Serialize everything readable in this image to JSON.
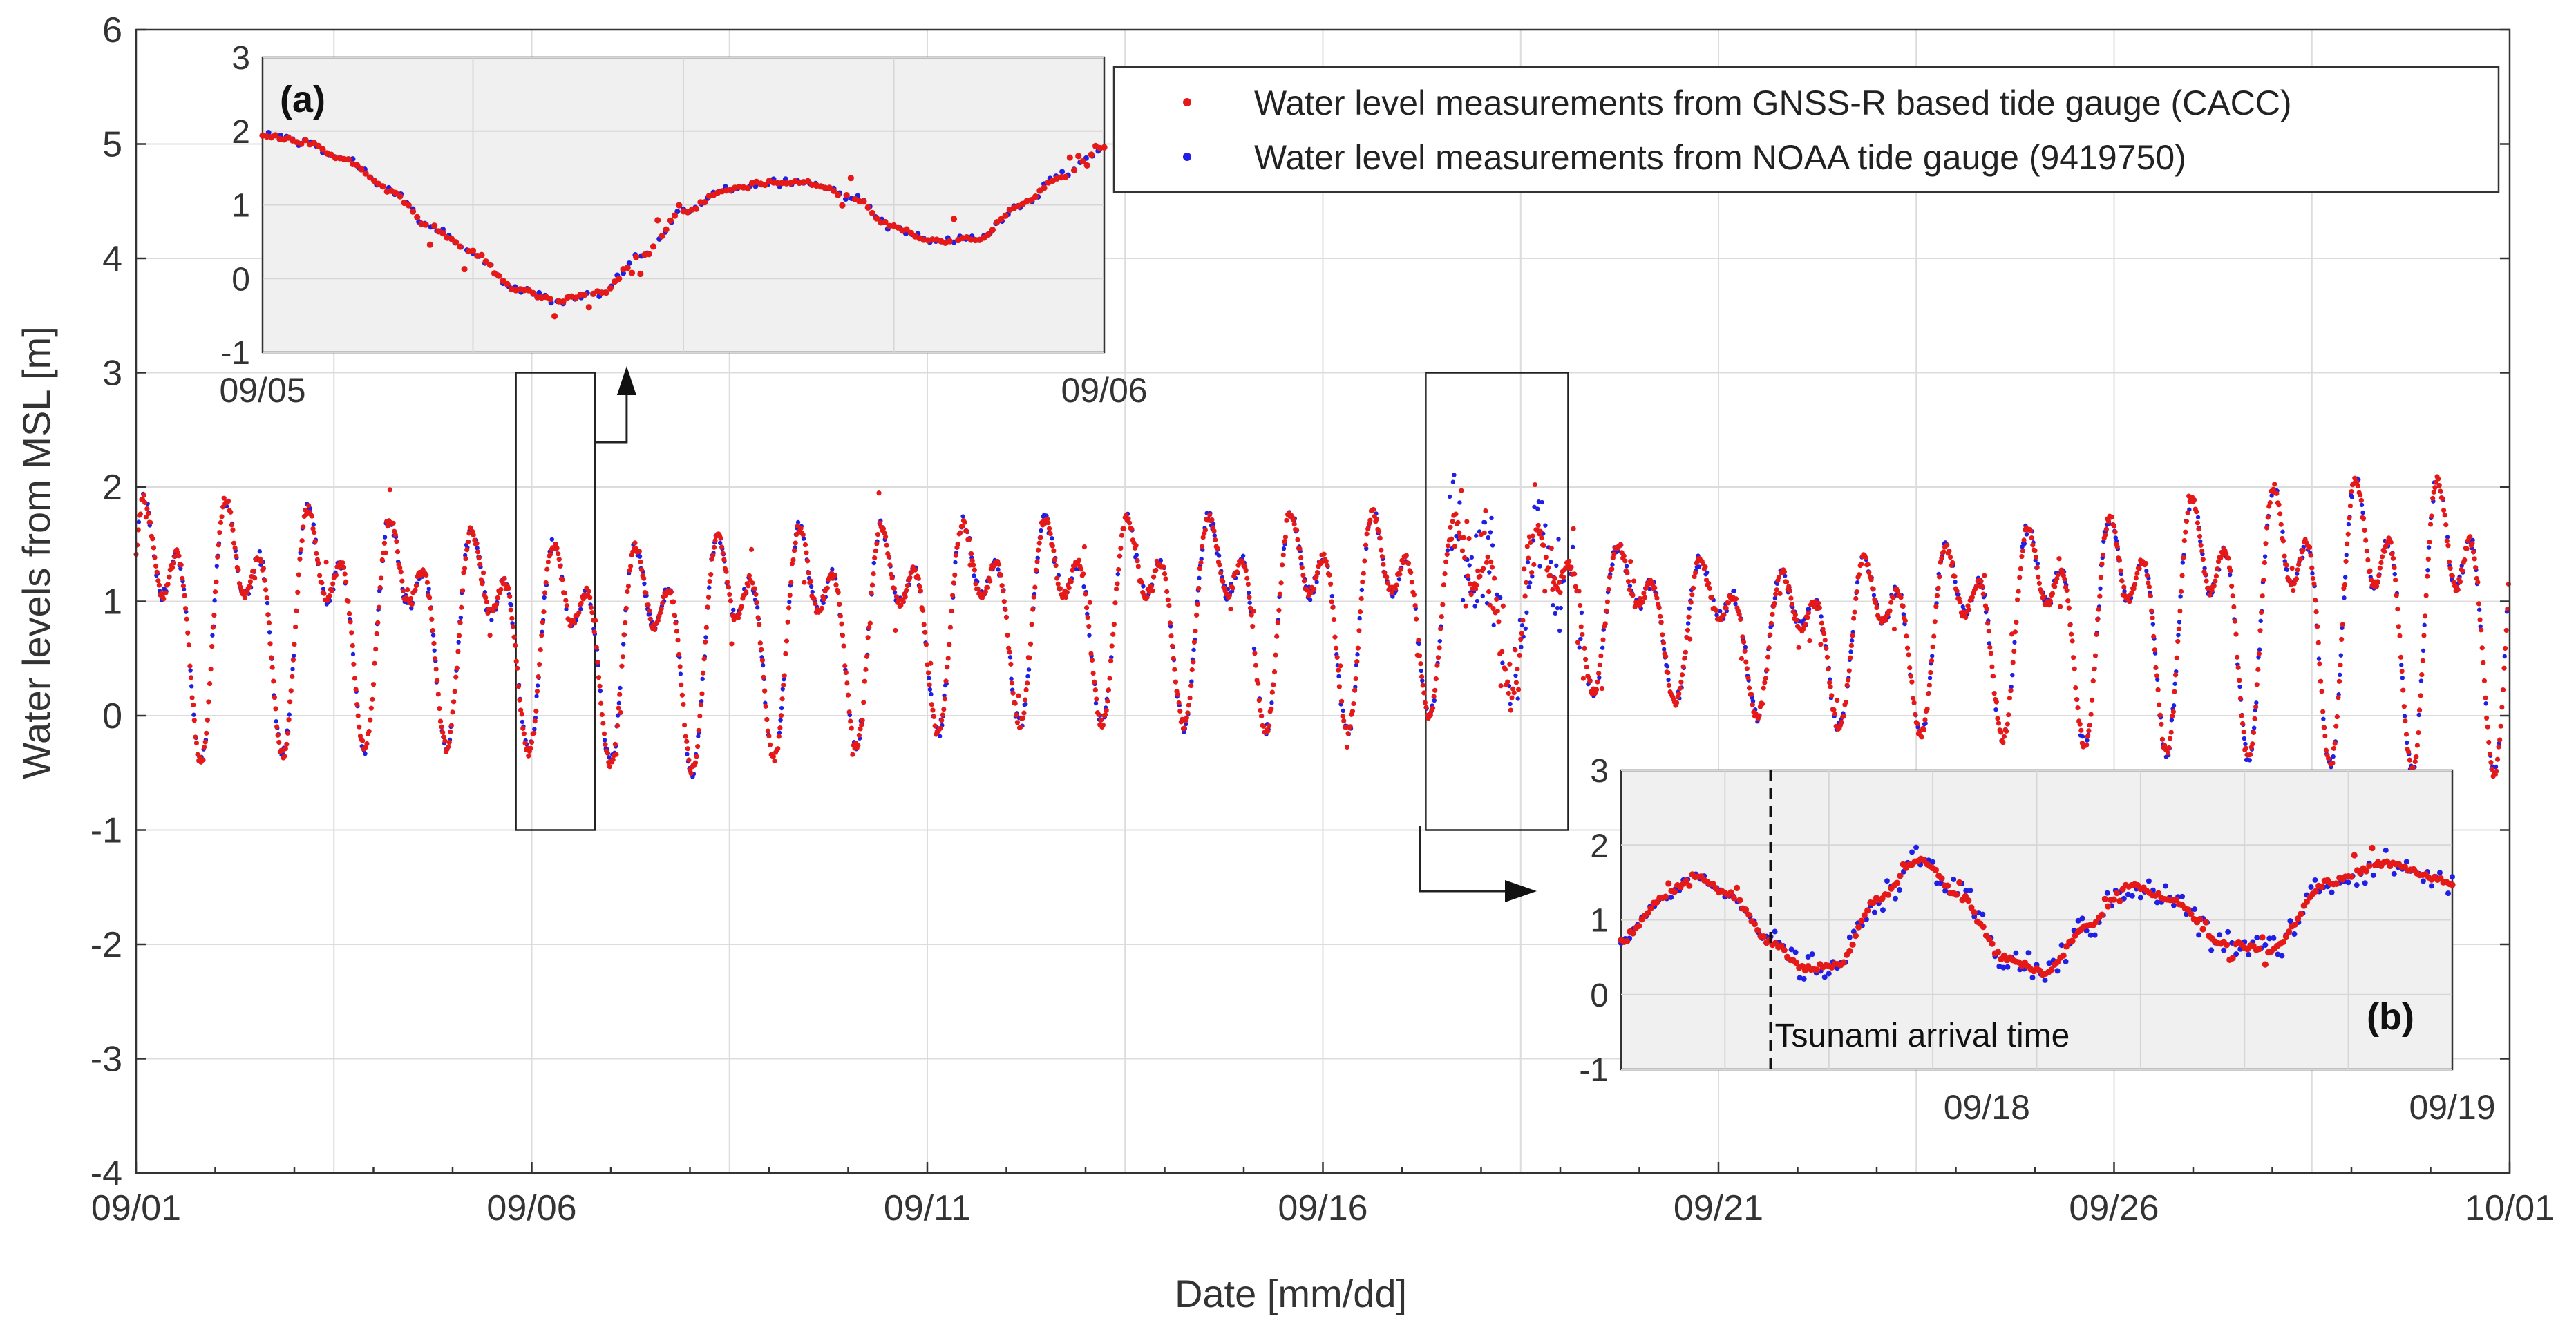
{
  "chart_data": [
    {
      "id": "main",
      "type": "scatter",
      "title": "",
      "xlabel": "Date [mm/dd]",
      "ylabel": "Water levels from MSL [m]",
      "xlim_days": [
        0,
        30
      ],
      "ylim": [
        -4,
        6
      ],
      "grid": true,
      "xticks": [
        {
          "day": 0,
          "label": "09/01"
        },
        {
          "day": 5,
          "label": "09/06"
        },
        {
          "day": 10,
          "label": "09/11"
        },
        {
          "day": 15,
          "label": "09/16"
        },
        {
          "day": 20,
          "label": "09/21"
        },
        {
          "day": 25,
          "label": "09/26"
        },
        {
          "day": 30,
          "label": "10/01"
        }
      ],
      "yticks": [
        -4,
        -3,
        -2,
        -1,
        0,
        1,
        2,
        3,
        4,
        5,
        6
      ],
      "series": [
        {
          "name": "Water level measurements from GNSS-R based tide gauge (CACC)",
          "color": "#e61919",
          "marker": "dot",
          "description_model": "mixed semidiurnal tide sampled ~every 20 min",
          "approx_daily_high_peaks": [
            2.2,
            2.2,
            2.1,
            2.0,
            1.9,
            1.75,
            1.7,
            1.8,
            1.9,
            1.9,
            1.9,
            1.95,
            1.95,
            1.95,
            2.0,
            2.05,
            2.0,
            1.9,
            1.8,
            1.6,
            1.5,
            1.4,
            1.6,
            1.7,
            1.9,
            2.0,
            2.2,
            2.3,
            2.4,
            2.4
          ],
          "approx_daily_low_troughs": [
            -0.35,
            -0.3,
            -0.25,
            -0.2,
            -0.2,
            -0.25,
            -0.35,
            -0.4,
            -0.3,
            -0.2,
            -0.1,
            0.0,
            0.0,
            0.0,
            -0.05,
            -0.1,
            0.0,
            0.2,
            0.3,
            0.2,
            0.1,
            0.0,
            -0.1,
            -0.1,
            -0.15,
            -0.2,
            -0.25,
            -0.3,
            -0.35,
            -0.4
          ]
        },
        {
          "name": "Water level measurements from NOAA tide gauge (9419750)",
          "color": "#1f1fe6",
          "marker": "dot"
        }
      ],
      "zoom_boxes": [
        {
          "label": "(a)",
          "x_days": [
            4.8,
            5.8
          ],
          "y": [
            -1,
            3
          ]
        },
        {
          "label": "(b)",
          "x_days": [
            16.3,
            18.1
          ],
          "y": [
            -1,
            3
          ]
        }
      ]
    },
    {
      "id": "inset_a",
      "type": "scatter",
      "label": "(a)",
      "ylim": [
        -1,
        3
      ],
      "yticks": [
        -1,
        0,
        1,
        2,
        3
      ],
      "xticks": [
        {
          "pos": 0,
          "label": "09/05"
        },
        {
          "pos": 1,
          "label": "09/06"
        }
      ],
      "curve": [
        {
          "t": 0.0,
          "y": 1.95
        },
        {
          "t": 0.05,
          "y": 1.85
        },
        {
          "t": 0.1,
          "y": 1.6
        },
        {
          "t": 0.15,
          "y": 1.2
        },
        {
          "t": 0.2,
          "y": 0.7
        },
        {
          "t": 0.25,
          "y": 0.35
        },
        {
          "t": 0.3,
          "y": -0.15
        },
        {
          "t": 0.35,
          "y": -0.3
        },
        {
          "t": 0.4,
          "y": -0.2
        },
        {
          "t": 0.45,
          "y": 0.3
        },
        {
          "t": 0.5,
          "y": 0.9
        },
        {
          "t": 0.55,
          "y": 1.2
        },
        {
          "t": 0.6,
          "y": 1.3
        },
        {
          "t": 0.65,
          "y": 1.3
        },
        {
          "t": 0.7,
          "y": 1.1
        },
        {
          "t": 0.75,
          "y": 0.7
        },
        {
          "t": 0.8,
          "y": 0.5
        },
        {
          "t": 0.85,
          "y": 0.55
        },
        {
          "t": 0.9,
          "y": 1.0
        },
        {
          "t": 0.95,
          "y": 1.4
        },
        {
          "t": 1.0,
          "y": 1.75
        }
      ]
    },
    {
      "id": "inset_b",
      "type": "scatter",
      "label": "(b)",
      "ylim": [
        -1,
        3
      ],
      "yticks": [
        -1,
        0,
        1,
        2,
        3
      ],
      "xticks": [
        {
          "pos": 0.44,
          "label": "09/18"
        },
        {
          "pos": 1.0,
          "label": "09/19"
        }
      ],
      "annotation": {
        "text": "Tsunami arrival time",
        "pos": 0.18
      },
      "curve": [
        {
          "t": 0.0,
          "y": 0.7
        },
        {
          "t": 0.05,
          "y": 1.3
        },
        {
          "t": 0.09,
          "y": 1.6
        },
        {
          "t": 0.13,
          "y": 1.35
        },
        {
          "t": 0.18,
          "y": 0.7
        },
        {
          "t": 0.22,
          "y": 0.35
        },
        {
          "t": 0.26,
          "y": 0.4
        },
        {
          "t": 0.31,
          "y": 1.3
        },
        {
          "t": 0.36,
          "y": 1.8
        },
        {
          "t": 0.41,
          "y": 1.3
        },
        {
          "t": 0.46,
          "y": 0.5
        },
        {
          "t": 0.51,
          "y": 0.3
        },
        {
          "t": 0.56,
          "y": 0.9
        },
        {
          "t": 0.61,
          "y": 1.45
        },
        {
          "t": 0.66,
          "y": 1.3
        },
        {
          "t": 0.72,
          "y": 0.7
        },
        {
          "t": 0.78,
          "y": 0.6
        },
        {
          "t": 0.85,
          "y": 1.5
        },
        {
          "t": 0.92,
          "y": 1.75
        },
        {
          "t": 1.0,
          "y": 1.5
        }
      ]
    }
  ]
}
